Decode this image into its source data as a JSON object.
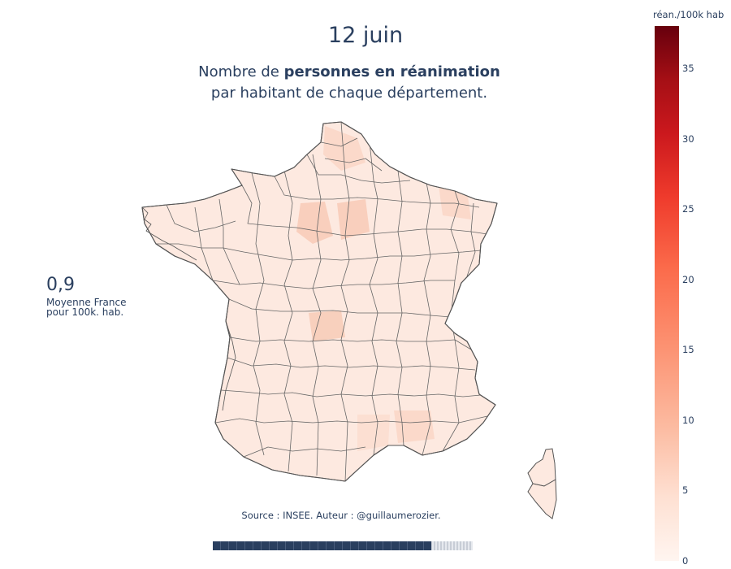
{
  "header": {
    "title": "12 juin",
    "subtitle_prefix": "Nombre de ",
    "subtitle_bold": "personnes en réanimation",
    "subtitle_line2": "par habitant de chaque département."
  },
  "average": {
    "value": "0,9",
    "label_line1": "Moyenne France",
    "label_line2": "pour 100k. hab."
  },
  "source": "Source : INSEE. Auteur : @guillaumerozier.",
  "colorbar": {
    "title": "réan./100k hab",
    "min": 0,
    "max": 38,
    "ticks": [
      "35",
      "30",
      "25",
      "20",
      "15",
      "10",
      "5",
      "0"
    ],
    "colors": {
      "low": "#fff5f0",
      "high": "#67000d",
      "map_fill": "#fde9e0",
      "map_fill_highlight": "#f9d2c2",
      "border": "#555555"
    }
  },
  "slider": {
    "progress": 0.84
  }
}
